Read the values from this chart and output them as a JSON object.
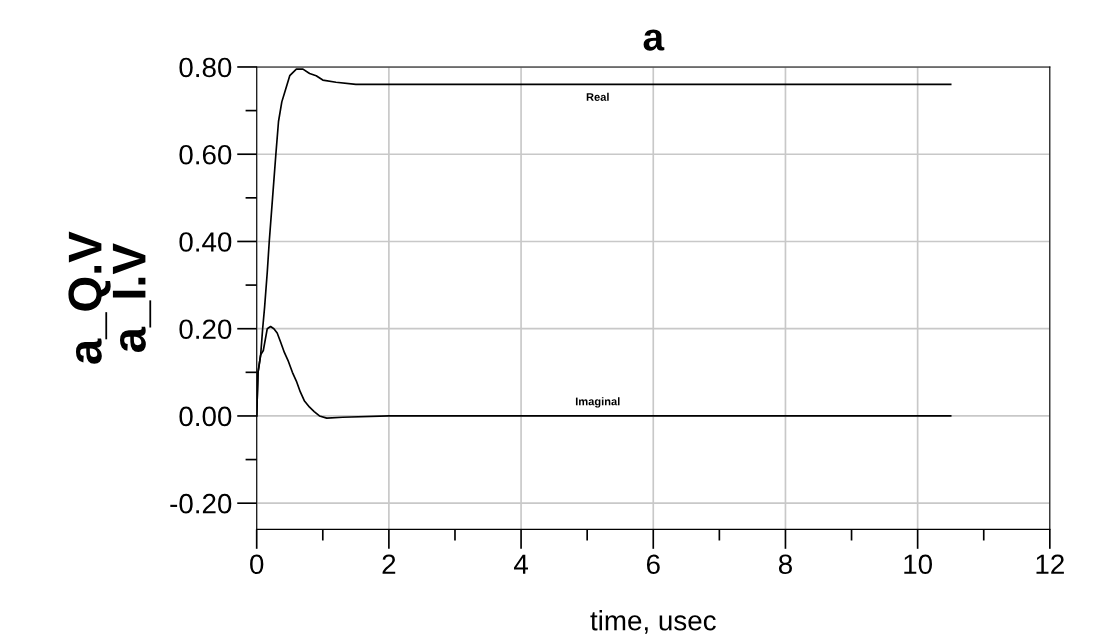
{
  "chart_data": {
    "type": "line",
    "title": "a",
    "xlabel": "time, usec",
    "ylabel": "a_Q.V\na_I.V",
    "xlim": [
      0,
      12
    ],
    "ylim": [
      -0.26,
      0.8
    ],
    "xticks": [
      0,
      {
        "value": 1,
        "label": null
      },
      2,
      {
        "value": 3,
        "label": null
      },
      4,
      {
        "value": 5,
        "label": null
      },
      6,
      {
        "value": 7,
        "label": null
      },
      8,
      {
        "value": 9,
        "label": null
      },
      10,
      {
        "value": 11,
        "label": null
      },
      12
    ],
    "yticks": [
      {
        "value": -0.2,
        "label": "-0.20"
      },
      {
        "value": -0.1,
        "label": null
      },
      {
        "value": 0,
        "label": "0.00"
      },
      {
        "value": 0.1,
        "label": null
      },
      {
        "value": 0.2,
        "label": "0.20"
      },
      {
        "value": 0.3,
        "label": null
      },
      {
        "value": 0.4,
        "label": "0.40"
      },
      {
        "value": 0.5,
        "label": null
      },
      {
        "value": 0.6,
        "label": "0.60"
      },
      {
        "value": 0.7,
        "label": null
      },
      {
        "value": 0.8,
        "label": "0.80"
      }
    ],
    "grid": true,
    "legend": false,
    "marker": "none",
    "line_style": "solid",
    "series": [
      {
        "name": "Real",
        "color": "#000000",
        "x": [
          0,
          0.02,
          0.06,
          0.09,
          0.12,
          0.16,
          0.19,
          0.24,
          0.29,
          0.33,
          0.38,
          0.43,
          0.5,
          0.6,
          0.7,
          0.8,
          0.9,
          1.0,
          1.2,
          1.5,
          2,
          4,
          6,
          8,
          10,
          10.5
        ],
        "values": [
          0,
          0.1,
          0.14,
          0.2,
          0.25,
          0.33,
          0.4,
          0.5,
          0.6,
          0.675,
          0.72,
          0.745,
          0.78,
          0.795,
          0.795,
          0.785,
          0.78,
          0.77,
          0.765,
          0.76,
          0.76,
          0.76,
          0.76,
          0.76,
          0.76,
          0.76
        ]
      },
      {
        "name": "Imaginal",
        "color": "#000000",
        "x": [
          0,
          0.02,
          0.06,
          0.1,
          0.16,
          0.21,
          0.26,
          0.31,
          0.36,
          0.42,
          0.48,
          0.54,
          0.6,
          0.66,
          0.72,
          0.8,
          0.87,
          0.95,
          1.06,
          1.3,
          2,
          4,
          6,
          8,
          10,
          10.5
        ],
        "values": [
          0,
          0.1,
          0.14,
          0.15,
          0.2,
          0.205,
          0.2,
          0.19,
          0.17,
          0.145,
          0.125,
          0.1,
          0.08,
          0.055,
          0.035,
          0.02,
          0.01,
          0.0,
          -0.005,
          -0.003,
          0,
          0,
          0,
          0,
          0,
          0
        ]
      }
    ]
  }
}
